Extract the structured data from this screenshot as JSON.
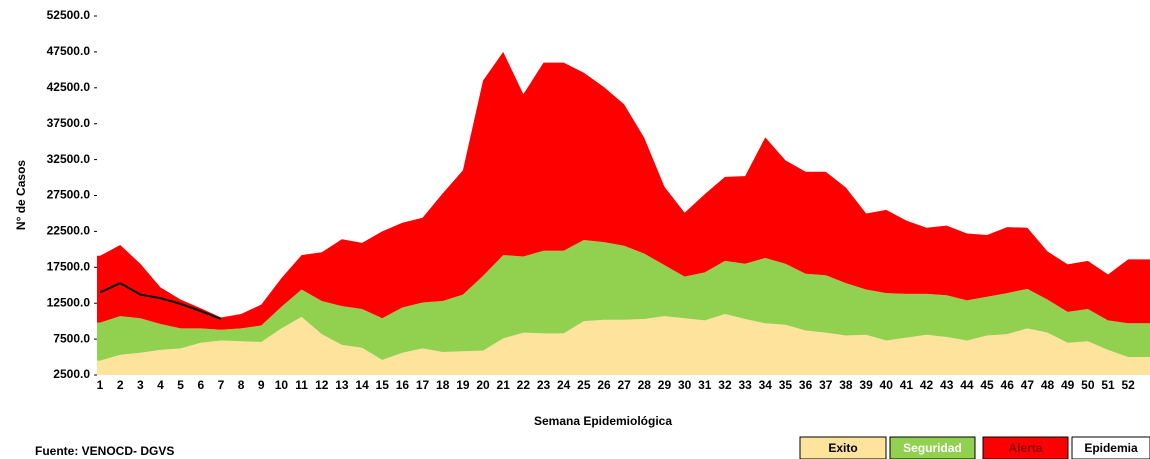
{
  "chart_data": {
    "type": "stacked_area",
    "ylabel": "N° de Casos",
    "xlabel": "Semana Epidemiológica",
    "source": "Fuente: VENOCD- DGVS",
    "categories": [
      "1",
      "2",
      "3",
      "4",
      "5",
      "6",
      "7",
      "8",
      "9",
      "10",
      "11",
      "12",
      "13",
      "14",
      "15",
      "16",
      "17",
      "18",
      "19",
      "20",
      "21",
      "22",
      "23",
      "24",
      "25",
      "26",
      "27",
      "28",
      "29",
      "30",
      "31",
      "32",
      "33",
      "34",
      "35",
      "36",
      "37",
      "38",
      "39",
      "40",
      "41",
      "42",
      "43",
      "44",
      "45",
      "46",
      "47",
      "48",
      "49",
      "50",
      "51",
      "52"
    ],
    "ylim": [
      2500,
      52500
    ],
    "yticks": [
      {
        "value": 2500,
        "label": "2500.0"
      },
      {
        "value": 7500,
        "label": "7500.0"
      },
      {
        "value": 12500,
        "label": "12500.0"
      },
      {
        "value": 17500,
        "label": "17500.0"
      },
      {
        "value": 22500,
        "label": "22500.0"
      },
      {
        "value": 27500,
        "label": "27500.0"
      },
      {
        "value": 32500,
        "label": "32500.0"
      },
      {
        "value": 37500,
        "label": "37500.0"
      },
      {
        "value": 42500,
        "label": "42500.0"
      },
      {
        "value": 47500,
        "label": "47500.0"
      },
      {
        "value": 52500,
        "label": "52500.0"
      }
    ],
    "series": [
      {
        "name": "Exito",
        "color": "#fde39b",
        "values": [
          4500,
          5300,
          5600,
          6000,
          6200,
          7000,
          7300,
          7200,
          7100,
          9000,
          10600,
          8200,
          6700,
          6300,
          4600,
          5600,
          6200,
          5700,
          5800,
          5900,
          7600,
          8400,
          8300,
          8300,
          10000,
          10200,
          10200,
          10300,
          10700,
          10400,
          10100,
          11000,
          10300,
          9700,
          9500,
          8700,
          8400,
          8000,
          8100,
          7300,
          7700,
          8100,
          7800,
          7300,
          8000,
          8200,
          9000,
          8400,
          7000,
          7200,
          6000,
          5000
        ]
      },
      {
        "name": "Seguridad",
        "color": "#92d050",
        "values": [
          5300,
          5400,
          4800,
          3600,
          2800,
          2000,
          1500,
          1800,
          2300,
          3000,
          3800,
          4600,
          5400,
          5400,
          5800,
          6300,
          6400,
          7100,
          7900,
          10400,
          11600,
          10600,
          11500,
          11500,
          11300,
          10800,
          10300,
          9100,
          7100,
          5800,
          6700,
          7400,
          7700,
          9100,
          8500,
          7900,
          8000,
          7300,
          6300,
          6600,
          6100,
          5700,
          5800,
          5600,
          5400,
          5700,
          5500,
          4600,
          4300,
          4500,
          4100,
          4700
        ]
      },
      {
        "name": "Alerta",
        "color": "#ff0000",
        "values": [
          9300,
          9900,
          7600,
          5100,
          4000,
          2800,
          1700,
          2000,
          2900,
          4000,
          4800,
          6800,
          9300,
          9200,
          12100,
          11800,
          11800,
          15000,
          17300,
          27200,
          28300,
          22600,
          26200,
          26200,
          23300,
          21600,
          19700,
          16100,
          10900,
          8900,
          10900,
          11700,
          12200,
          16800,
          14400,
          14200,
          14400,
          13300,
          10600,
          11600,
          10200,
          9200,
          9700,
          9300,
          8600,
          9200,
          8500,
          6700,
          6600,
          6700,
          6400,
          8900
        ]
      }
    ],
    "epidemia": {
      "name": "Epidemia",
      "color": "#ffffff"
    },
    "current": {
      "color": "#000000",
      "values": [
        14000,
        15300,
        13700,
        13200,
        12400,
        11400,
        10300,
        null,
        null,
        null,
        null,
        null,
        null,
        null,
        null,
        null,
        null,
        null,
        null,
        null,
        null,
        null,
        null,
        null,
        null,
        null,
        null,
        null,
        null,
        null,
        null,
        null,
        null,
        null,
        null,
        null,
        null,
        null,
        null,
        null,
        null,
        null,
        null,
        null,
        null,
        null,
        null,
        null,
        null,
        null,
        null,
        null
      ]
    }
  }
}
